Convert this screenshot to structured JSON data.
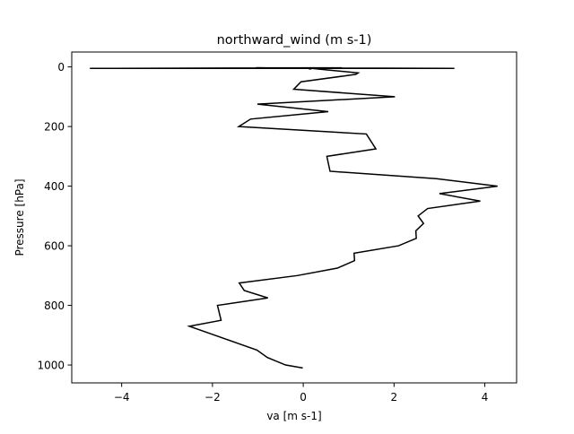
{
  "chart_data": {
    "type": "line",
    "title": "northward_wind (m s-1)",
    "xlabel": "va [m s-1]",
    "ylabel": "Pressure [hPa]",
    "xlim": [
      -5.1,
      4.7
    ],
    "ylim": [
      1060,
      -50
    ],
    "y_inverted": true,
    "grid": false,
    "x_ticks": [
      {
        "value": -4,
        "label": "−4"
      },
      {
        "value": -2,
        "label": "−2"
      },
      {
        "value": 0,
        "label": "0"
      },
      {
        "value": 2,
        "label": "2"
      },
      {
        "value": 4,
        "label": "4"
      }
    ],
    "y_ticks": [
      {
        "value": 0,
        "label": "0"
      },
      {
        "value": 200,
        "label": "200"
      },
      {
        "value": 400,
        "label": "400"
      },
      {
        "value": 600,
        "label": "600"
      },
      {
        "value": 800,
        "label": "800"
      },
      {
        "value": 1000,
        "label": "1000"
      }
    ],
    "line_color": "#000000",
    "series": [
      {
        "name": "",
        "points": [
          {
            "x": -0.01,
            "y": 1010
          },
          {
            "x": -0.39,
            "y": 1000
          },
          {
            "x": -0.79,
            "y": 975
          },
          {
            "x": -1.02,
            "y": 950
          },
          {
            "x": -1.95,
            "y": 900
          },
          {
            "x": -2.51,
            "y": 870
          },
          {
            "x": -1.81,
            "y": 850
          },
          {
            "x": -1.89,
            "y": 800
          },
          {
            "x": -0.78,
            "y": 775
          },
          {
            "x": -1.3,
            "y": 750
          },
          {
            "x": -1.41,
            "y": 725
          },
          {
            "x": -0.13,
            "y": 700
          },
          {
            "x": 0.75,
            "y": 675
          },
          {
            "x": 1.13,
            "y": 650
          },
          {
            "x": 1.12,
            "y": 625
          },
          {
            "x": 2.1,
            "y": 600
          },
          {
            "x": 2.49,
            "y": 575
          },
          {
            "x": 2.48,
            "y": 550
          },
          {
            "x": 2.65,
            "y": 525
          },
          {
            "x": 2.53,
            "y": 500
          },
          {
            "x": 2.74,
            "y": 475
          },
          {
            "x": 3.9,
            "y": 450
          },
          {
            "x": 3.0,
            "y": 425
          },
          {
            "x": 4.28,
            "y": 400
          },
          {
            "x": 2.93,
            "y": 375
          },
          {
            "x": 0.59,
            "y": 350
          },
          {
            "x": 0.52,
            "y": 300
          },
          {
            "x": 1.6,
            "y": 275
          },
          {
            "x": 1.39,
            "y": 225
          },
          {
            "x": -1.42,
            "y": 200
          },
          {
            "x": -1.16,
            "y": 175
          },
          {
            "x": 0.55,
            "y": 150
          },
          {
            "x": -1.01,
            "y": 125
          },
          {
            "x": 2.02,
            "y": 100
          },
          {
            "x": -0.21,
            "y": 75
          },
          {
            "x": -0.05,
            "y": 50
          },
          {
            "x": 1.16,
            "y": 25
          },
          {
            "x": 1.21,
            "y": 20
          },
          {
            "x": 0.53,
            "y": 10
          },
          {
            "x": 0.19,
            "y": 5
          },
          {
            "x": 0.15,
            "y": 7
          },
          {
            "x": 0.11,
            "y": 5
          },
          {
            "x": -1.04,
            "y": 3
          },
          {
            "x": 3.33,
            "y": 5
          },
          {
            "x": 0.01,
            "y": 5
          },
          {
            "x": -4.7,
            "y": 5
          },
          {
            "x": 0.1,
            "y": 3
          },
          {
            "x": 0.85,
            "y": 3
          }
        ]
      }
    ]
  }
}
